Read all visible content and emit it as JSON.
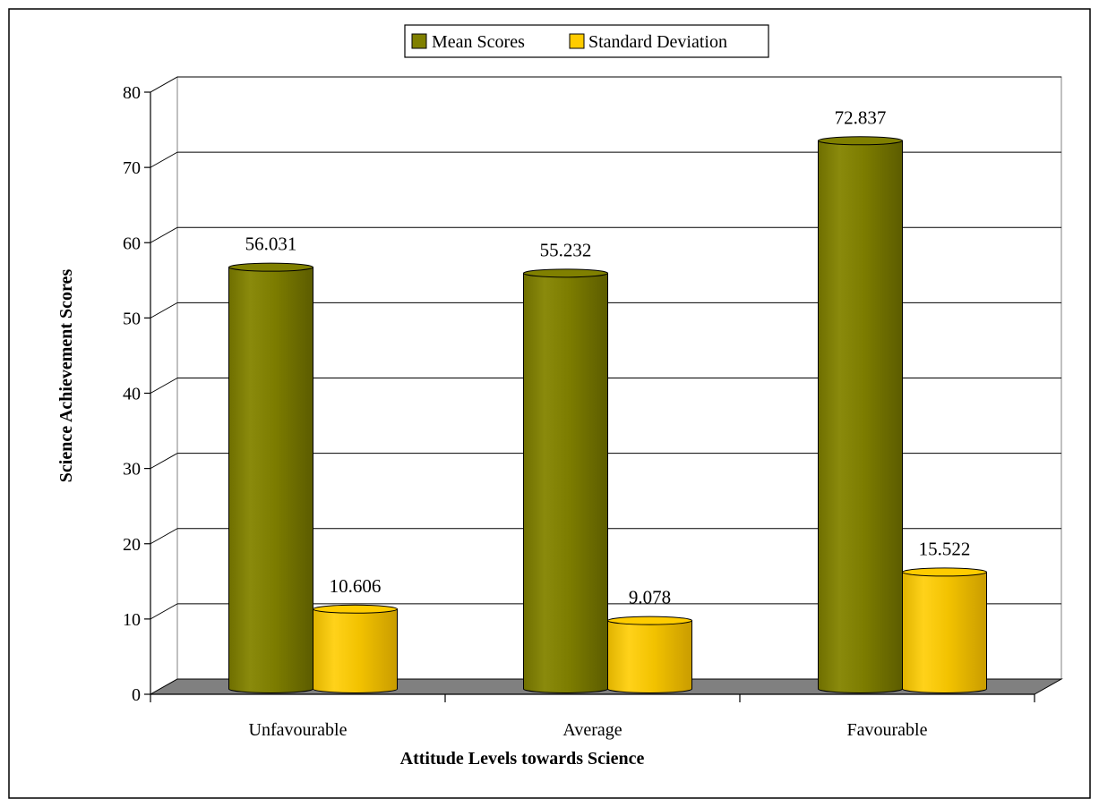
{
  "chart_data": {
    "type": "bar",
    "title": "",
    "xlabel": "Attitude Levels towards Science",
    "ylabel": "Science Achievement Scores",
    "categories": [
      "Unfavourable",
      "Average",
      "Favourable"
    ],
    "series": [
      {
        "name": "Mean Scores",
        "values": [
          56.031,
          55.232,
          72.837
        ],
        "labels": [
          "56.031",
          "55.232",
          "72.837"
        ],
        "color": "#808000"
      },
      {
        "name": "Standard Deviation",
        "values": [
          10.606,
          9.078,
          15.522
        ],
        "labels": [
          "10.606",
          "9.078",
          "15.522"
        ],
        "color": "#FFCC00"
      }
    ],
    "ylim": [
      0,
      80
    ],
    "yticks": [
      "0",
      "10",
      "20",
      "30",
      "40",
      "50",
      "60",
      "70",
      "80"
    ],
    "grid": true,
    "legend_position": "top-center",
    "floor_color": "#808080"
  }
}
